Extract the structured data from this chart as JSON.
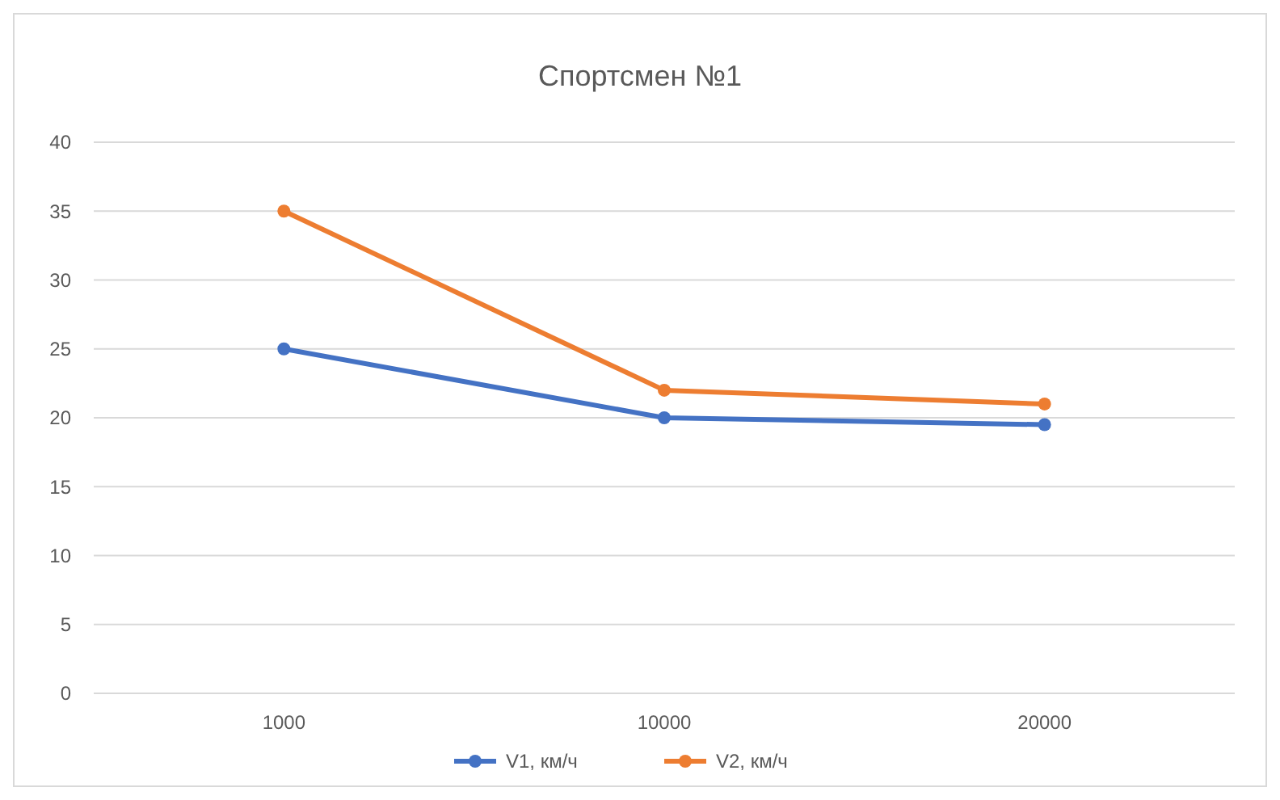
{
  "chart_data": {
    "type": "line",
    "title": "Спортсмен №1",
    "categories": [
      "1000",
      "10000",
      "20000"
    ],
    "series": [
      {
        "name": "V1, км/ч",
        "color": "#4472c4",
        "values": [
          25,
          20,
          19.5
        ]
      },
      {
        "name": "V2, км/ч",
        "color": "#ed7d31",
        "values": [
          35,
          22,
          21
        ]
      }
    ],
    "ylim": [
      0,
      40
    ],
    "yticks": [
      0,
      5,
      10,
      15,
      20,
      25,
      30,
      35,
      40
    ],
    "grid": "y",
    "legend": "bottom",
    "marker": "circle",
    "line_style": "solid"
  }
}
